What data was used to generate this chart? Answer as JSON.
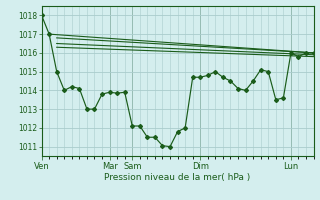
{
  "background_color": "#d4eeee",
  "grid_color": "#aacccc",
  "line_color": "#1a5c1a",
  "title": "Pression niveau de la mer( hPa )",
  "ylim": [
    1010.5,
    1018.5
  ],
  "yticks": [
    1011,
    1012,
    1013,
    1014,
    1015,
    1016,
    1017,
    1018
  ],
  "x_day_labels": [
    "Ven",
    "Mar",
    "Sam",
    "Dim",
    "Lun"
  ],
  "x_day_positions": [
    0,
    36,
    48,
    84,
    132
  ],
  "xlim": [
    0,
    144
  ],
  "main_series_x": [
    0,
    4,
    8,
    12,
    16,
    20,
    24,
    28,
    32,
    36,
    40,
    44,
    48,
    52,
    56,
    60,
    64,
    68,
    72,
    76,
    80,
    84,
    88,
    92,
    96,
    100,
    104,
    108,
    112,
    116,
    120,
    124,
    128,
    132,
    136,
    140,
    144
  ],
  "main_series_y": [
    1018.0,
    1017.0,
    1015.0,
    1014.0,
    1014.2,
    1014.1,
    1013.0,
    1013.0,
    1013.8,
    1013.9,
    1013.85,
    1013.9,
    1012.1,
    1012.1,
    1011.5,
    1011.5,
    1011.05,
    1011.0,
    1011.8,
    1012.0,
    1014.7,
    1014.7,
    1014.8,
    1015.0,
    1014.7,
    1014.5,
    1014.1,
    1014.0,
    1014.5,
    1015.1,
    1015.0,
    1013.5,
    1013.6,
    1016.0,
    1015.8,
    1016.0,
    1016.0
  ],
  "ref_line1_x": [
    4,
    144
  ],
  "ref_line1_y": [
    1017.0,
    1016.0
  ],
  "ref_line2_x": [
    8,
    144
  ],
  "ref_line2_y": [
    1016.8,
    1016.0
  ],
  "ref_line3_x": [
    8,
    144
  ],
  "ref_line3_y": [
    1016.5,
    1015.9
  ],
  "ref_line4_x": [
    8,
    144
  ],
  "ref_line4_y": [
    1016.3,
    1015.8
  ]
}
